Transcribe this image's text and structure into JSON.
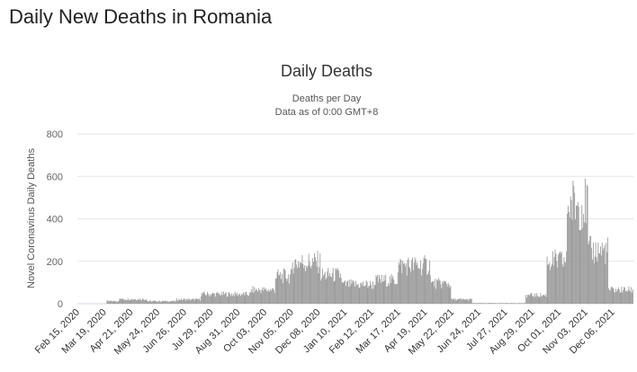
{
  "page": {
    "title": "Daily New Deaths in Romania"
  },
  "chart_data": {
    "type": "bar",
    "title": "Daily Deaths",
    "subtitle": "Deaths per Day",
    "subtitle2": "Data as of 0:00 GMT+8",
    "ylabel": "Novel Coronavirus Daily Deaths",
    "xlabel": "",
    "ylim": [
      0,
      800
    ],
    "yticks": [
      0,
      200,
      400,
      600,
      800
    ],
    "x_range": [
      "2020-02-15",
      "2021-12-31"
    ],
    "x_tick_labels": [
      "Feb 15, 2020",
      "Mar 19, 2020",
      "Apr 21, 2020",
      "May 24, 2020",
      "Jun 26, 2020",
      "Jul 29, 2020",
      "Aug 31, 2020",
      "Oct 03, 2020",
      "Nov 05, 2020",
      "Dec 08, 2020",
      "Jan 10, 2021",
      "Feb 12, 2021",
      "Mar 17, 2021",
      "Apr 19, 2021",
      "May 22, 2021",
      "Jun 24, 2021",
      "Jul 27, 2021",
      "Aug 29, 2021",
      "Oct 01, 2021",
      "Nov 03, 2021",
      "Dec 06, 2021"
    ],
    "bar_color": "#999999",
    "grid": true,
    "legend": "none",
    "series": [
      {
        "values_by_period": [
          {
            "from": "2020-02-15",
            "to": "2020-03-21",
            "value": 0
          },
          {
            "from": "2020-03-22",
            "to": "2020-04-05",
            "value": 12
          },
          {
            "from": "2020-04-06",
            "to": "2020-05-10",
            "value": 22
          },
          {
            "from": "2020-05-11",
            "to": "2020-06-15",
            "value": 12
          },
          {
            "from": "2020-06-16",
            "to": "2020-07-15",
            "value": 20
          },
          {
            "from": "2020-07-16",
            "to": "2020-09-15",
            "value": 45
          },
          {
            "from": "2020-09-16",
            "to": "2020-10-15",
            "value": 65
          },
          {
            "from": "2020-10-16",
            "to": "2020-11-05",
            "value": 130
          },
          {
            "from": "2020-11-06",
            "to": "2020-12-10",
            "value": 195
          },
          {
            "from": "2020-12-11",
            "to": "2021-01-05",
            "value": 135
          },
          {
            "from": "2021-01-06",
            "to": "2021-02-15",
            "value": 90
          },
          {
            "from": "2021-02-16",
            "to": "2021-03-15",
            "value": 110
          },
          {
            "from": "2021-03-16",
            "to": "2021-04-25",
            "value": 180
          },
          {
            "from": "2021-04-26",
            "to": "2021-05-20",
            "value": 95
          },
          {
            "from": "2021-05-21",
            "to": "2021-06-15",
            "value": 20
          },
          {
            "from": "2021-06-16",
            "to": "2021-08-20",
            "value": 3
          },
          {
            "from": "2021-08-21",
            "to": "2021-09-15",
            "value": 40
          },
          {
            "from": "2021-09-16",
            "to": "2021-10-10",
            "value": 200
          },
          {
            "from": "2021-10-11",
            "to": "2021-11-05",
            "value": 470
          },
          {
            "from": "2021-11-06",
            "to": "2021-11-30",
            "value": 250
          },
          {
            "from": "2021-12-01",
            "to": "2021-12-31",
            "value": 65
          }
        ]
      }
    ]
  }
}
